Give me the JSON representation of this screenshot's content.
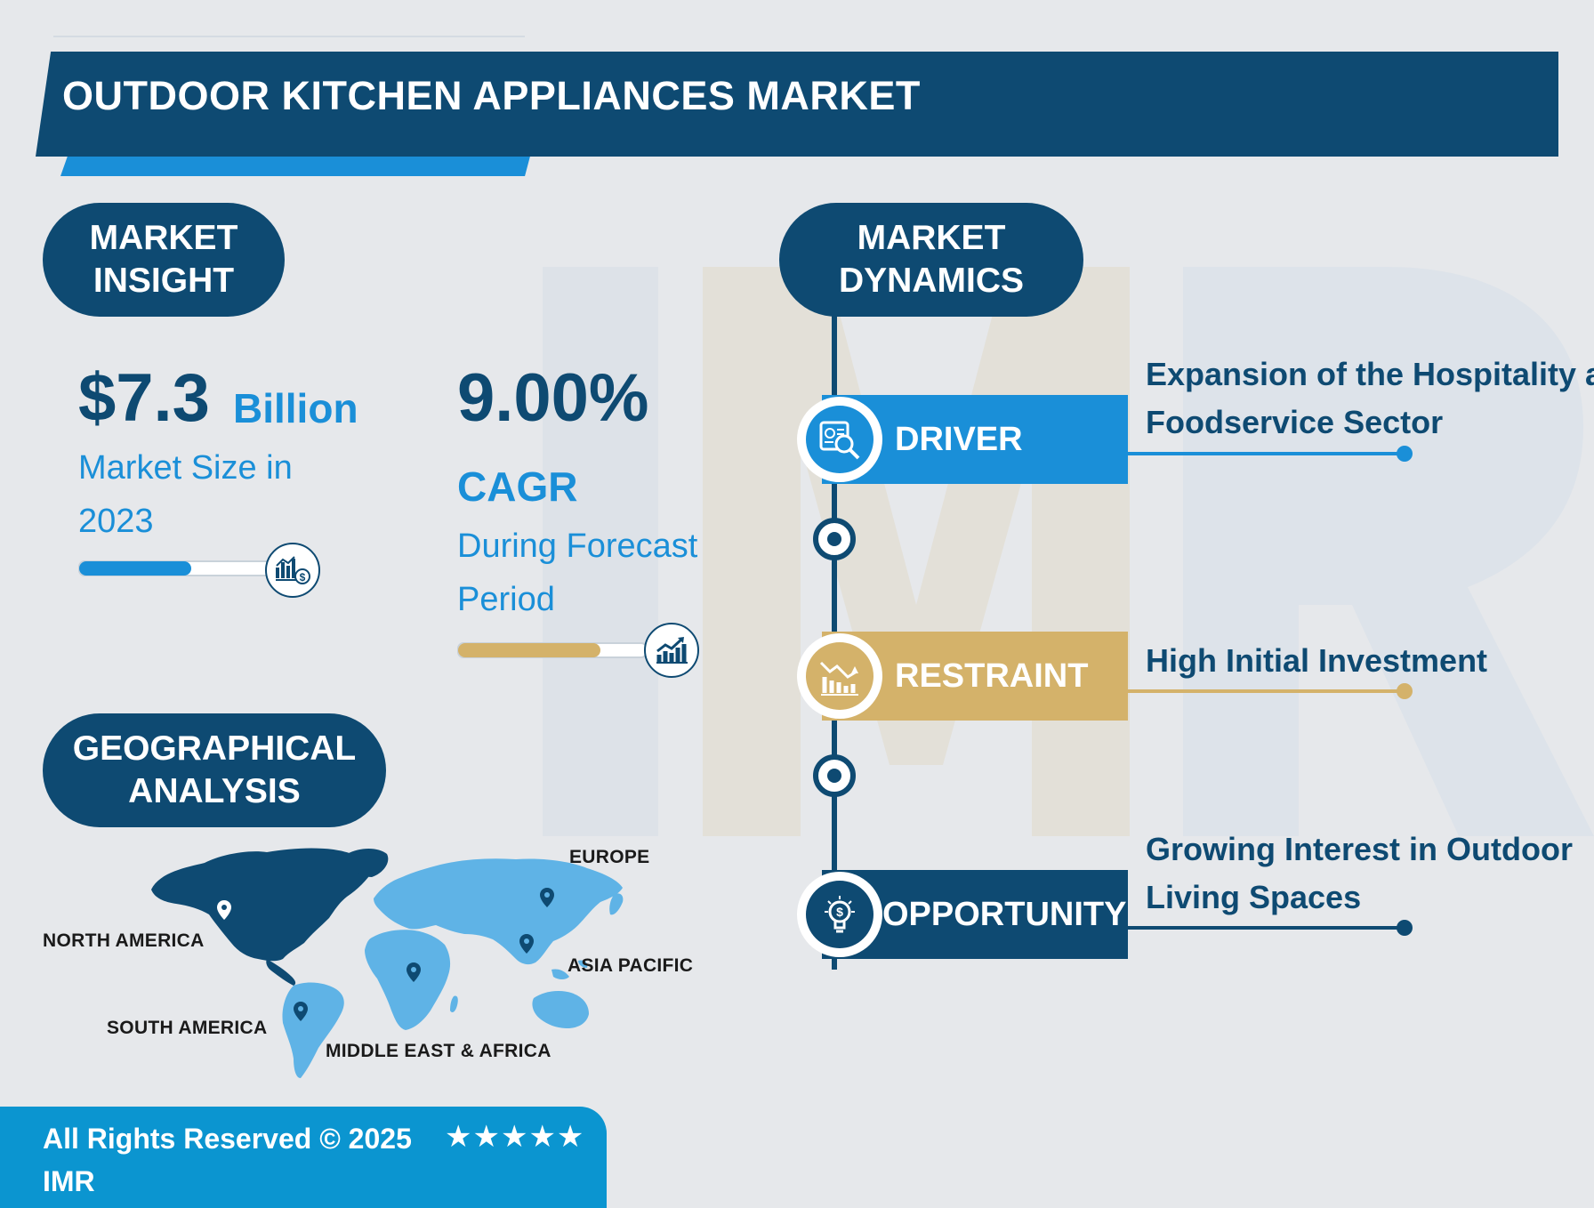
{
  "header": {
    "title": "OUTDOOR KITCHEN APPLIANCES MARKET"
  },
  "insight": {
    "heading_line1": "MARKET",
    "heading_line2": "INSIGHT",
    "market_size_value": "$7.3",
    "market_size_unit": "Billion",
    "market_size_label": "Market Size in 2023",
    "cagr_value": "9.00%",
    "cagr_label": "CAGR",
    "cagr_sub": "During Forecast Period",
    "market_size_progress_percent": 58,
    "cagr_progress_percent": 76
  },
  "dynamics": {
    "heading_line1": "MARKET",
    "heading_line2": "DYNAMICS",
    "driver": {
      "label": "DRIVER",
      "text_line1": "Expansion of the Hospitality a",
      "text_line2": "Foodservice Sector"
    },
    "restraint": {
      "label": "RESTRAINT",
      "text_line1": "High Initial Investment"
    },
    "opportunity": {
      "label": "OPPORTUNITY",
      "text_line1": "Growing Interest in Outdoor",
      "text_line2": "Living Spaces"
    }
  },
  "geo": {
    "heading_line1": "GEOGRAPHICAL",
    "heading_line2": "ANALYSIS",
    "regions": {
      "north_america": "NORTH AMERICA",
      "europe": "EUROPE",
      "asia_pacific": "ASIA PACIFIC",
      "south_america": "SOUTH AMERICA",
      "mea": "MIDDLE EAST & AFRICA"
    }
  },
  "footer": {
    "rights": "All Rights Reserved © 2025",
    "brand": "IMR",
    "stars": "★★★★★"
  },
  "colors": {
    "navy": "#0e4a72",
    "blue": "#1a8fd8",
    "gold": "#d4b26a",
    "footer_blue": "#0b95d0",
    "map_light": "#5fb3e6"
  },
  "icons": {
    "driver": "analytics-magnifier-icon",
    "restraint": "declining-chart-icon",
    "opportunity": "idea-bulb-dollar-icon",
    "market_size_knob": "bar-chart-dollar-icon",
    "cagr_knob": "growth-chart-icon",
    "map_marker": "location-pin-icon"
  }
}
